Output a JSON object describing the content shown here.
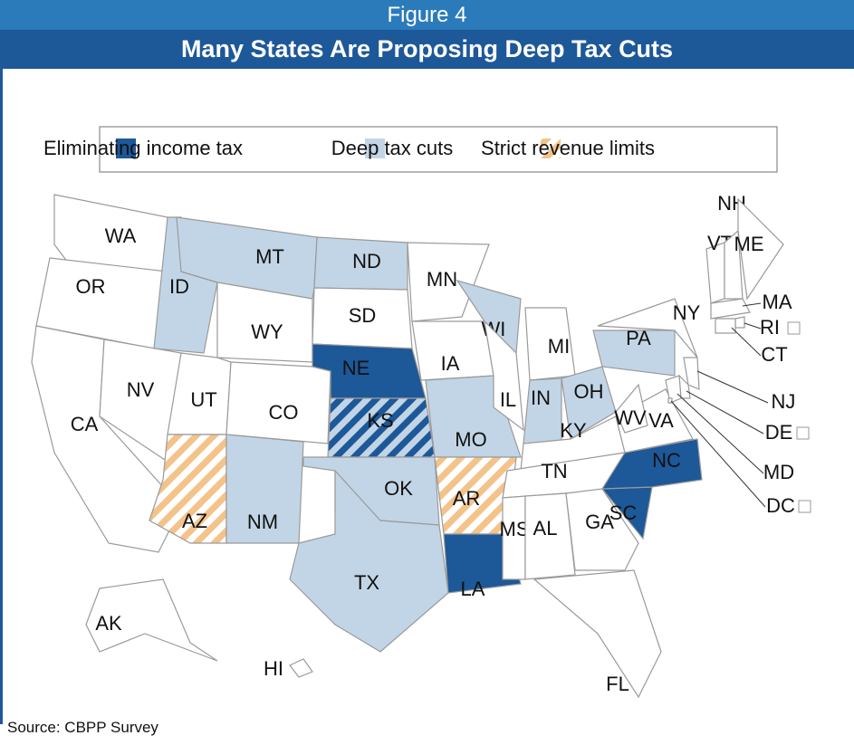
{
  "header": {
    "figure": "Figure 4",
    "title": "Many States Are Proposing Deep Tax Cuts"
  },
  "legend": [
    {
      "label": "Eliminating income tax",
      "color": "#1d5898"
    },
    {
      "label": "Deep tax cuts",
      "color": "#c2d5e6"
    },
    {
      "label": "Strict revenue limits",
      "color": "#f3c38a",
      "pattern": "hatched"
    }
  ],
  "states": [
    {
      "label": "WA",
      "category": []
    },
    {
      "label": "OR",
      "category": []
    },
    {
      "label": "CA",
      "category": []
    },
    {
      "label": "NV",
      "category": []
    },
    {
      "label": "ID",
      "category": [
        1
      ]
    },
    {
      "label": "MT",
      "category": [
        1
      ]
    },
    {
      "label": "WY",
      "category": []
    },
    {
      "label": "UT",
      "category": []
    },
    {
      "label": "CO",
      "category": []
    },
    {
      "label": "AZ",
      "category": [
        2
      ]
    },
    {
      "label": "NM",
      "category": [
        1
      ]
    },
    {
      "label": "ND",
      "category": [
        1
      ]
    },
    {
      "label": "SD",
      "category": []
    },
    {
      "label": "NE",
      "category": [
        0
      ]
    },
    {
      "label": "KS",
      "category": [
        0,
        1
      ]
    },
    {
      "label": "OK",
      "category": [
        1
      ]
    },
    {
      "label": "TX",
      "category": [
        1
      ]
    },
    {
      "label": "MN",
      "category": []
    },
    {
      "label": "IA",
      "category": []
    },
    {
      "label": "MO",
      "category": [
        1
      ]
    },
    {
      "label": "AR",
      "category": [
        2
      ]
    },
    {
      "label": "LA",
      "category": [
        0
      ]
    },
    {
      "label": "WI",
      "category": [
        1
      ]
    },
    {
      "label": "IL",
      "category": []
    },
    {
      "label": "MI",
      "category": []
    },
    {
      "label": "IN",
      "category": [
        1
      ]
    },
    {
      "label": "OH",
      "category": [
        1
      ]
    },
    {
      "label": "KY",
      "category": []
    },
    {
      "label": "TN",
      "category": []
    },
    {
      "label": "MS",
      "category": []
    },
    {
      "label": "AL",
      "category": []
    },
    {
      "label": "GA",
      "category": []
    },
    {
      "label": "FL",
      "category": []
    },
    {
      "label": "SC",
      "category": [
        0
      ]
    },
    {
      "label": "NC",
      "category": [
        0
      ]
    },
    {
      "label": "VA",
      "category": []
    },
    {
      "label": "WV",
      "category": []
    },
    {
      "label": "PA",
      "category": [
        1
      ]
    },
    {
      "label": "NY",
      "category": []
    },
    {
      "label": "VT",
      "category": []
    },
    {
      "label": "NH",
      "category": []
    },
    {
      "label": "ME",
      "category": []
    },
    {
      "label": "MA",
      "category": []
    },
    {
      "label": "RI",
      "category": []
    },
    {
      "label": "CT",
      "category": []
    },
    {
      "label": "NJ",
      "category": []
    },
    {
      "label": "DE",
      "category": []
    },
    {
      "label": "MD",
      "category": []
    },
    {
      "label": "DC",
      "category": []
    },
    {
      "label": "AK",
      "category": []
    },
    {
      "label": "HI",
      "category": []
    }
  ],
  "source": "Source: CBPP Survey"
}
